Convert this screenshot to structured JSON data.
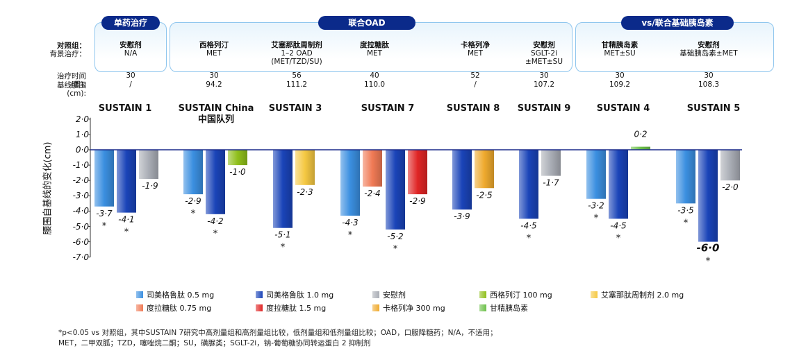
{
  "groups": [
    {
      "label": "单药治疗"
    },
    {
      "label": "联合OAD"
    },
    {
      "label": "vs/联合基础胰岛素"
    }
  ],
  "row_labels": {
    "comparator": "对照组：",
    "background": "背景治疗：",
    "duration": "治疗时间 (周):",
    "waist": "基线腰围(cm):"
  },
  "columns": [
    {
      "comparator": "安慰剂",
      "background": [
        "N/A"
      ],
      "duration": "30",
      "waist": "/"
    },
    {
      "comparator": "西格列汀",
      "background": [
        "MET"
      ],
      "duration": "30",
      "waist": "94.2"
    },
    {
      "comparator": "艾塞那肽周制剂",
      "background": [
        "1–2 OAD",
        "(MET/TZD/SU)"
      ],
      "duration": "56",
      "waist": "111.2"
    },
    {
      "comparator": "度拉糖肽",
      "background": [
        "MET"
      ],
      "duration": "40",
      "waist": "110.0"
    },
    {
      "comparator": "卡格列净",
      "background": [
        "MET"
      ],
      "duration": "52",
      "waist": "/"
    },
    {
      "comparator": "安慰剂",
      "background": [
        "SGLT-2i",
        "±MET±SU"
      ],
      "duration": "30",
      "waist": "107.2"
    },
    {
      "comparator": "甘精胰岛素",
      "background": [
        "MET±SU"
      ],
      "duration": "30",
      "waist": "109.2"
    },
    {
      "comparator": "安慰剂",
      "background": [
        "基础胰岛素±MET"
      ],
      "duration": "30",
      "waist": "108.3"
    }
  ],
  "colors": {
    "sema05": "#3b8fe0",
    "sema10": "#1a44b8",
    "placebo": "#a9adb5",
    "sita": "#8fbf1a",
    "exen": "#f5c842",
    "dula075": "#f07a55",
    "dula15": "#e02525",
    "cana": "#efaa2e",
    "glar": "#6cc04a",
    "header_pill": "#0b2a8a",
    "axis": "#1a2a8a"
  },
  "chart_data": {
    "type": "bar",
    "ylabel": "腰围自基线的变化(cm)",
    "ylim": [
      -7.0,
      2.0
    ],
    "yticks": [
      "2·0",
      "1·0",
      "0·0",
      "-1·0",
      "-2·0",
      "-3·0",
      "-4·0",
      "-5·0",
      "-6·0",
      "-7·0"
    ],
    "categories": [
      "SUSTAIN 1",
      "SUSTAIN  China\n中国队列",
      "SUSTAIN 3",
      "SUSTAIN 7",
      "SUSTAIN 8",
      "SUSTAIN 9",
      "SUSTAIN 4",
      "SUSTAIN 5"
    ],
    "groups": [
      {
        "trial": "SUSTAIN 1",
        "bars": [
          {
            "series": "司美格鲁肽 0.5 mg",
            "key": "sema05",
            "value": -3.7,
            "label": "-3·7",
            "sig": true
          },
          {
            "series": "司美格鲁肽 1.0 mg",
            "key": "sema10",
            "value": -4.1,
            "label": "-4·1",
            "sig": true
          },
          {
            "series": "安慰剂",
            "key": "placebo",
            "value": -1.9,
            "label": "-1·9",
            "sig": false
          }
        ]
      },
      {
        "trial": "SUSTAIN  China 中国队列",
        "bars": [
          {
            "series": "司美格鲁肽 0.5 mg",
            "key": "sema05",
            "value": -2.9,
            "label": "-2·9",
            "sig": true
          },
          {
            "series": "司美格鲁肽 1.0 mg",
            "key": "sema10",
            "value": -4.2,
            "label": "-4·2",
            "sig": true
          },
          {
            "series": "西格列汀 100 mg",
            "key": "sita",
            "value": -1.0,
            "label": "-1·0",
            "sig": false
          }
        ]
      },
      {
        "trial": "SUSTAIN 3",
        "bars": [
          {
            "series": "司美格鲁肽 1.0 mg",
            "key": "sema10",
            "value": -5.1,
            "label": "-5·1",
            "sig": true
          },
          {
            "series": "艾塞那肽周制剂 2.0 mg",
            "key": "exen",
            "value": -2.3,
            "label": "-2·3",
            "sig": false
          }
        ]
      },
      {
        "trial": "SUSTAIN 7",
        "bars": [
          {
            "series": "司美格鲁肽 0.5 mg",
            "key": "sema05",
            "value": -4.3,
            "label": "-4·3",
            "sig": true
          },
          {
            "series": "度拉糖肽 0.75 mg",
            "key": "dula075",
            "value": -2.4,
            "label": "-2·4",
            "sig": false
          },
          {
            "series": "司美格鲁肽 1.0 mg",
            "key": "sema10",
            "value": -5.2,
            "label": "-5·2",
            "sig": true
          },
          {
            "series": "度拉糖肽 1.5 mg",
            "key": "dula15",
            "value": -2.9,
            "label": "-2·9",
            "sig": false
          }
        ]
      },
      {
        "trial": "SUSTAIN 8",
        "bars": [
          {
            "series": "司美格鲁肽 1.0 mg",
            "key": "sema10",
            "value": -3.9,
            "label": "-3·9",
            "sig": false
          },
          {
            "series": "卡格列净 300 mg",
            "key": "cana",
            "value": -2.5,
            "label": "-2·5",
            "sig": false
          }
        ]
      },
      {
        "trial": "SUSTAIN 9",
        "bars": [
          {
            "series": "司美格鲁肽 1.0 mg",
            "key": "sema10",
            "value": -4.5,
            "label": "-4·5",
            "sig": true
          },
          {
            "series": "安慰剂",
            "key": "placebo",
            "value": -1.7,
            "label": "-1·7",
            "sig": false
          }
        ]
      },
      {
        "trial": "SUSTAIN 4",
        "bars": [
          {
            "series": "司美格鲁肽 0.5 mg",
            "key": "sema05",
            "value": -3.2,
            "label": "-3·2",
            "sig": true
          },
          {
            "series": "司美格鲁肽 1.0 mg",
            "key": "sema10",
            "value": -4.5,
            "label": "-4·5",
            "sig": true
          },
          {
            "series": "甘精胰岛素",
            "key": "glar",
            "value": 0.2,
            "label": "0·2",
            "sig": false
          }
        ]
      },
      {
        "trial": "SUSTAIN 5",
        "bars": [
          {
            "series": "司美格鲁肽 0.5 mg",
            "key": "sema05",
            "value": -3.5,
            "label": "-3·5",
            "sig": true
          },
          {
            "series": "司美格鲁肽 1.0 mg",
            "key": "sema10",
            "value": -6.0,
            "label": "-6·0",
            "sig": true
          },
          {
            "series": "安慰剂",
            "key": "placebo",
            "value": -2.0,
            "label": "-2·0",
            "sig": false
          }
        ]
      }
    ],
    "legend": [
      {
        "key": "sema05",
        "label": "司美格鲁肽 0.5 mg"
      },
      {
        "key": "sema10",
        "label": "司美格鲁肽 1.0 mg"
      },
      {
        "key": "placebo",
        "label": "安慰剂"
      },
      {
        "key": "sita",
        "label": "西格列汀 100 mg"
      },
      {
        "key": "exen",
        "label": "艾塞那肽周制剂 2.0 mg"
      },
      {
        "key": "dula075",
        "label": "度拉糖肽 0.75 mg"
      },
      {
        "key": "dula15",
        "label": "度拉糖肽 1.5 mg"
      },
      {
        "key": "cana",
        "label": "卡格列净 300 mg"
      },
      {
        "key": "glar",
        "label": "甘精胰岛素"
      }
    ],
    "sig_marker": "*"
  },
  "footnote": {
    "line1": "*p<0.05 vs 对照组，其中SUSTAIN 7研究中高剂量组和高剂量组比较，低剂量组和低剂量组比较；OAD，口服降糖药；N/A，不适用；",
    "line2": "MET，二甲双胍；TZD，噻唑烷二酮；SU，磺脲类；SGLT-2i，钠-葡萄糖协同转运蛋白 2 抑制剂"
  }
}
